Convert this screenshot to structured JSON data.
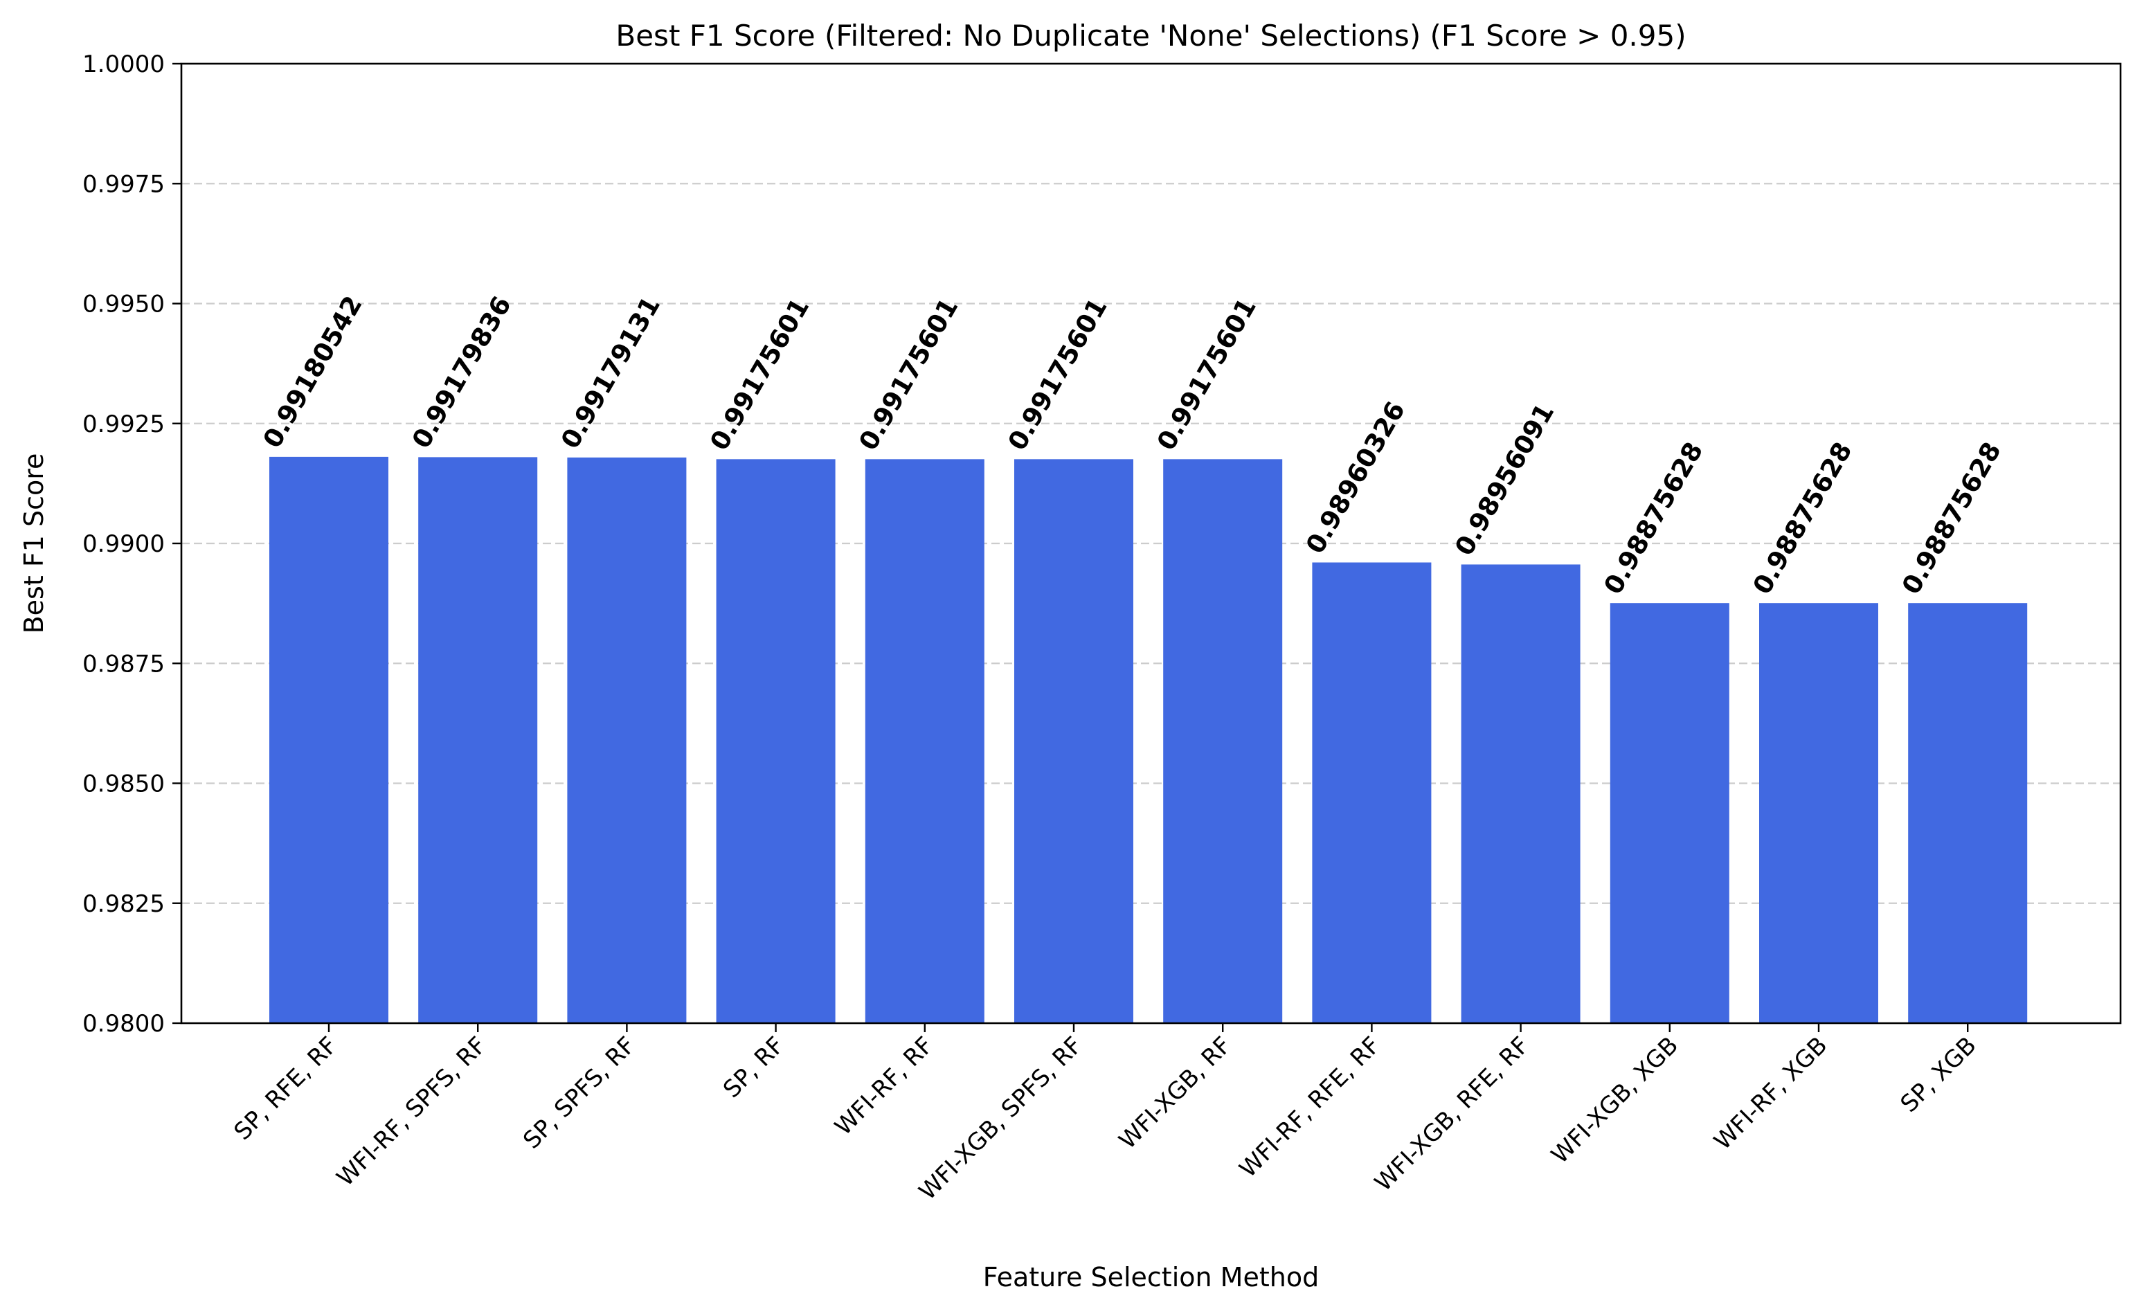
{
  "chart_data": {
    "type": "bar",
    "title": "Best F1 Score (Filtered: No Duplicate 'None' Selections) (F1 Score > 0.95)",
    "xlabel": "Feature Selection Method",
    "ylabel": "Best F1 Score",
    "categories": [
      "SP, RFE, RF",
      "WFI-RF, SPFS, RF",
      "SP, SPFS, RF",
      "SP, RF",
      "WFI-RF, RF",
      "WFI-XGB, SPFS, RF",
      "WFI-XGB, RF",
      "WFI-RF, RFE, RF",
      "WFI-XGB, RFE, RF",
      "WFI-XGB, XGB",
      "WFI-RF, XGB",
      "SP, XGB"
    ],
    "values": [
      0.99180542,
      0.99179836,
      0.99179131,
      0.99175601,
      0.99175601,
      0.99175601,
      0.99175601,
      0.98960326,
      0.98956091,
      0.98875628,
      0.98875628,
      0.98875628
    ],
    "data_labels": [
      "0.99180542",
      "0.99179836",
      "0.99179131",
      "0.99175601",
      "0.99175601",
      "0.99175601",
      "0.99175601",
      "0.98960326",
      "0.98956091",
      "0.98875628",
      "0.98875628",
      "0.98875628"
    ],
    "ylim": [
      0.98,
      1.0
    ],
    "yticks": [
      0.98,
      0.9825,
      0.985,
      0.9875,
      0.99,
      0.9925,
      0.995,
      0.9975,
      1.0
    ],
    "ytick_labels": [
      "0.9800",
      "0.9825",
      "0.9850",
      "0.9875",
      "0.9900",
      "0.9925",
      "0.9950",
      "0.9975",
      "1.0000"
    ],
    "grid": "y-dashed",
    "bar_color": "#4169e1",
    "grid_color": "#cccccc"
  }
}
